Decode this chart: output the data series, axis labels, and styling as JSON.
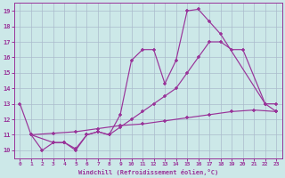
{
  "bg_color": "#cce8e8",
  "grid_color": "#aabbcc",
  "line_color": "#993399",
  "xlabel": "Windchill (Refroidissement éolien,°C)",
  "xlim": [
    -0.5,
    23.5
  ],
  "ylim": [
    9.5,
    19.5
  ],
  "xticks": [
    0,
    1,
    2,
    3,
    4,
    5,
    6,
    7,
    8,
    9,
    10,
    11,
    12,
    13,
    14,
    15,
    16,
    17,
    18,
    19,
    20,
    21,
    22,
    23
  ],
  "yticks": [
    10,
    11,
    12,
    13,
    14,
    15,
    16,
    17,
    18,
    19
  ],
  "curve1_x": [
    0,
    1,
    2,
    3,
    4,
    5,
    6,
    7,
    8,
    9,
    10,
    11,
    12,
    13,
    14,
    15,
    16,
    17,
    18,
    22,
    23
  ],
  "curve1_y": [
    13.0,
    11.0,
    10.0,
    10.5,
    10.5,
    10.0,
    11.0,
    11.2,
    11.0,
    12.3,
    15.8,
    16.5,
    16.5,
    14.3,
    15.8,
    19.0,
    19.1,
    18.3,
    17.5,
    13.0,
    12.5
  ],
  "curve2_x": [
    1,
    3,
    5,
    7,
    9,
    11,
    13,
    15,
    17,
    19,
    21,
    23
  ],
  "curve2_y": [
    11.0,
    11.1,
    11.2,
    11.4,
    11.6,
    11.7,
    11.9,
    12.1,
    12.3,
    12.5,
    12.6,
    12.5
  ],
  "curve3_x": [
    1,
    3,
    4,
    5,
    6,
    7,
    8,
    9,
    10,
    11,
    12,
    13,
    14,
    15,
    16,
    17,
    18,
    19,
    20,
    22,
    23
  ],
  "curve3_y": [
    11.0,
    10.5,
    10.5,
    10.1,
    11.0,
    11.2,
    11.0,
    11.5,
    12.0,
    12.5,
    13.0,
    13.5,
    14.0,
    15.0,
    16.0,
    17.0,
    17.0,
    16.5,
    16.5,
    13.0,
    13.0
  ]
}
